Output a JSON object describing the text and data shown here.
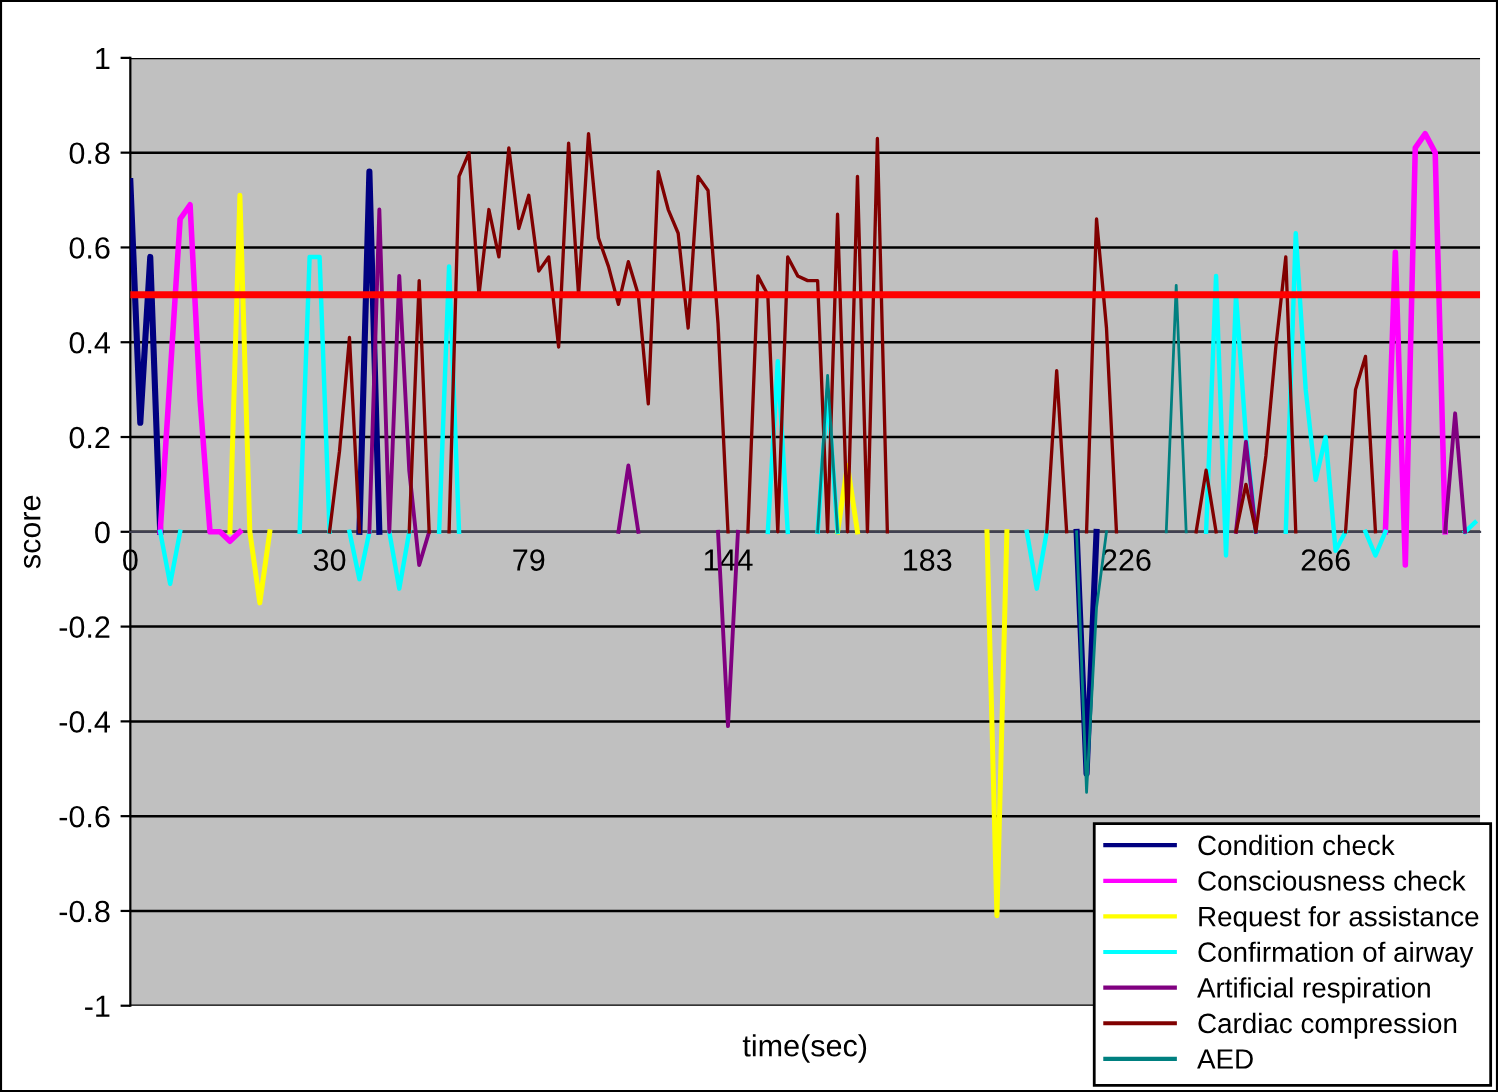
{
  "chart_data": {
    "type": "line",
    "xlabel": "time(sec)",
    "ylabel": "score",
    "categories": [
      "0",
      null,
      null,
      null,
      null,
      null,
      null,
      null,
      null,
      null,
      null,
      null,
      null,
      null,
      null,
      null,
      null,
      null,
      null,
      null,
      "30",
      null,
      null,
      null,
      null,
      null,
      null,
      null,
      null,
      null,
      null,
      null,
      null,
      null,
      null,
      null,
      null,
      null,
      null,
      null,
      "79",
      null,
      null,
      null,
      null,
      null,
      null,
      null,
      null,
      null,
      null,
      null,
      null,
      null,
      null,
      null,
      null,
      null,
      null,
      null,
      "144",
      null,
      null,
      null,
      null,
      null,
      null,
      null,
      null,
      null,
      null,
      null,
      null,
      null,
      null,
      null,
      null,
      null,
      null,
      null,
      "183",
      null,
      null,
      null,
      null,
      null,
      null,
      null,
      null,
      null,
      null,
      null,
      null,
      null,
      null,
      null,
      null,
      null,
      null,
      null,
      "226",
      null,
      null,
      null,
      null,
      null,
      null,
      null,
      null,
      null,
      null,
      null,
      null,
      null,
      null,
      null,
      null,
      null,
      null,
      null,
      "266",
      null,
      null,
      null,
      null,
      null,
      null,
      null,
      null,
      null,
      null,
      null,
      null,
      null,
      null,
      null
    ],
    "series": [
      {
        "name": "Condition check",
        "color": "#000080",
        "values": [
          0.74,
          0.23,
          0.58,
          0,
          null,
          null,
          null,
          null,
          null,
          null,
          null,
          null,
          null,
          null,
          null,
          null,
          null,
          null,
          null,
          null,
          null,
          null,
          null,
          0,
          0.76,
          0,
          null,
          null,
          null,
          null,
          null,
          null,
          null,
          null,
          null,
          null,
          null,
          null,
          null,
          null,
          null,
          null,
          null,
          null,
          null,
          null,
          null,
          null,
          null,
          null,
          null,
          null,
          null,
          null,
          null,
          null,
          null,
          null,
          null,
          null,
          null,
          null,
          null,
          null,
          null,
          null,
          null,
          null,
          null,
          null,
          null,
          null,
          null,
          null,
          null,
          null,
          null,
          null,
          null,
          null,
          null,
          null,
          null,
          null,
          null,
          null,
          null,
          null,
          null,
          null,
          null,
          null,
          null,
          null,
          null,
          0,
          -0.51,
          0,
          null,
          null,
          null,
          null,
          null,
          null,
          null,
          null,
          null,
          null,
          null,
          null,
          null,
          null,
          null,
          null,
          null,
          null,
          null,
          null,
          null,
          null,
          null,
          null,
          null,
          null,
          null,
          null,
          null,
          null,
          null,
          null,
          null,
          null,
          null,
          null,
          null,
          null
        ]
      },
      {
        "name": "Consciousness check",
        "color": "#ff00ff",
        "values": [
          null,
          null,
          null,
          0,
          0.33,
          0.66,
          0.69,
          0.28,
          0,
          0,
          -0.02,
          0,
          null,
          null,
          null,
          null,
          null,
          null,
          null,
          null,
          null,
          null,
          null,
          null,
          null,
          null,
          null,
          null,
          null,
          null,
          null,
          null,
          null,
          null,
          null,
          null,
          null,
          null,
          null,
          null,
          null,
          null,
          null,
          null,
          null,
          null,
          null,
          null,
          null,
          null,
          null,
          null,
          null,
          null,
          null,
          null,
          null,
          null,
          null,
          null,
          null,
          null,
          null,
          null,
          null,
          null,
          null,
          null,
          null,
          null,
          null,
          null,
          null,
          null,
          null,
          null,
          null,
          null,
          null,
          null,
          null,
          null,
          null,
          null,
          null,
          null,
          null,
          null,
          null,
          null,
          null,
          null,
          null,
          null,
          null,
          null,
          null,
          null,
          null,
          null,
          null,
          null,
          null,
          null,
          null,
          null,
          null,
          null,
          null,
          null,
          null,
          null,
          null,
          null,
          null,
          null,
          null,
          null,
          null,
          null,
          null,
          null,
          null,
          null,
          null,
          null,
          0,
          0.59,
          -0.07,
          0.81,
          0.84,
          0.8,
          0,
          null,
          null,
          null
        ]
      },
      {
        "name": "Request for assistance",
        "color": "#ffff00",
        "values": [
          null,
          null,
          null,
          null,
          null,
          null,
          null,
          null,
          null,
          null,
          0,
          0.71,
          0,
          -0.15,
          0,
          null,
          null,
          null,
          null,
          null,
          null,
          null,
          null,
          null,
          null,
          null,
          null,
          null,
          null,
          null,
          null,
          null,
          null,
          null,
          null,
          null,
          null,
          null,
          null,
          null,
          null,
          null,
          null,
          null,
          null,
          null,
          null,
          null,
          null,
          null,
          null,
          null,
          null,
          null,
          null,
          null,
          null,
          null,
          null,
          null,
          null,
          null,
          null,
          null,
          null,
          null,
          null,
          null,
          null,
          null,
          null,
          0,
          0.14,
          0,
          null,
          null,
          null,
          null,
          null,
          null,
          null,
          null,
          null,
          null,
          null,
          null,
          0,
          -0.81,
          0,
          null,
          null,
          null,
          null,
          null,
          null,
          null,
          null,
          null,
          null,
          null,
          null,
          null,
          null,
          null,
          null,
          null,
          null,
          null,
          null,
          null,
          null,
          null,
          null,
          null,
          null,
          null,
          null,
          null,
          null,
          null,
          null,
          null,
          null,
          null,
          null,
          null,
          null,
          null,
          null,
          null,
          null,
          null,
          null,
          null,
          null,
          null
        ]
      },
      {
        "name": "Confirmation of airway",
        "color": "#00ffff",
        "values": [
          null,
          null,
          null,
          0,
          -0.11,
          0,
          null,
          null,
          null,
          null,
          null,
          null,
          null,
          null,
          null,
          null,
          null,
          0,
          0.58,
          0.58,
          0,
          null,
          0,
          -0.1,
          0,
          null,
          0,
          -0.12,
          0,
          null,
          null,
          0,
          0.56,
          0,
          null,
          null,
          null,
          null,
          null,
          null,
          null,
          null,
          null,
          null,
          null,
          null,
          null,
          null,
          null,
          null,
          null,
          null,
          null,
          null,
          null,
          null,
          null,
          null,
          null,
          null,
          null,
          null,
          null,
          null,
          0,
          0.36,
          0,
          null,
          null,
          0,
          0.3,
          0,
          null,
          null,
          null,
          null,
          null,
          null,
          null,
          null,
          null,
          null,
          null,
          null,
          null,
          null,
          null,
          null,
          null,
          null,
          0,
          -0.12,
          0,
          null,
          null,
          null,
          null,
          null,
          null,
          null,
          null,
          null,
          null,
          null,
          null,
          null,
          null,
          null,
          0,
          0.54,
          -0.05,
          0.5,
          0.2,
          0,
          null,
          null,
          0,
          0.63,
          0.3,
          0.11,
          0.2,
          -0.04,
          0,
          null,
          0,
          -0.05,
          0,
          null,
          null,
          null,
          null,
          null,
          null,
          null,
          0,
          0.02
        ]
      },
      {
        "name": "Artificial respiration",
        "color": "#800080",
        "values": [
          null,
          null,
          null,
          null,
          null,
          null,
          null,
          null,
          null,
          null,
          null,
          null,
          null,
          null,
          null,
          null,
          null,
          null,
          null,
          null,
          null,
          null,
          null,
          null,
          0,
          0.68,
          0,
          0.54,
          0.13,
          -0.07,
          0,
          null,
          null,
          null,
          null,
          null,
          null,
          null,
          null,
          null,
          null,
          null,
          null,
          null,
          null,
          null,
          null,
          null,
          null,
          0,
          0.14,
          0,
          null,
          null,
          null,
          null,
          null,
          null,
          null,
          0,
          -0.41,
          0,
          null,
          null,
          null,
          null,
          null,
          null,
          null,
          null,
          null,
          null,
          null,
          null,
          null,
          null,
          null,
          null,
          null,
          null,
          null,
          null,
          null,
          null,
          null,
          null,
          null,
          null,
          null,
          null,
          null,
          null,
          null,
          null,
          null,
          null,
          null,
          null,
          null,
          null,
          null,
          null,
          null,
          null,
          null,
          null,
          null,
          null,
          null,
          null,
          null,
          0,
          0.19,
          0,
          null,
          null,
          null,
          null,
          null,
          null,
          null,
          null,
          null,
          null,
          null,
          null,
          null,
          null,
          null,
          null,
          null,
          null,
          0,
          0.25,
          0,
          null
        ]
      },
      {
        "name": "Cardiac compression",
        "color": "#800000",
        "values": [
          null,
          null,
          null,
          null,
          null,
          null,
          null,
          null,
          null,
          null,
          null,
          null,
          null,
          null,
          null,
          null,
          null,
          null,
          null,
          null,
          0,
          0.17,
          0.41,
          0,
          null,
          null,
          null,
          null,
          0,
          0.53,
          0,
          null,
          0,
          0.75,
          0.8,
          0.5,
          0.68,
          0.58,
          0.81,
          0.64,
          0.71,
          0.55,
          0.58,
          0.39,
          0.82,
          0.5,
          0.84,
          0.62,
          0.56,
          0.48,
          0.57,
          0.5,
          0.27,
          0.76,
          0.68,
          0.63,
          0.43,
          0.75,
          0.72,
          0.44,
          0,
          null,
          0,
          0.54,
          0.5,
          0,
          0.58,
          0.54,
          0.53,
          0.53,
          0,
          0.67,
          0,
          0.75,
          0,
          0.83,
          0,
          null,
          null,
          null,
          null,
          null,
          null,
          null,
          null,
          null,
          null,
          null,
          null,
          null,
          null,
          null,
          0,
          0.34,
          0,
          null,
          0,
          0.66,
          0.43,
          0,
          null,
          null,
          null,
          null,
          null,
          null,
          null,
          0,
          0.13,
          0,
          null,
          0,
          0.1,
          0,
          0.16,
          0.39,
          0.58,
          0,
          null,
          null,
          null,
          null,
          0,
          0.3,
          0.37,
          0,
          null,
          null,
          null,
          null,
          null,
          null,
          null,
          null,
          null,
          null
        ]
      },
      {
        "name": "AED",
        "color": "#008080",
        "values": [
          null,
          null,
          null,
          null,
          null,
          null,
          null,
          null,
          null,
          null,
          null,
          null,
          null,
          null,
          null,
          null,
          null,
          null,
          null,
          null,
          null,
          null,
          null,
          null,
          null,
          null,
          null,
          null,
          null,
          null,
          null,
          null,
          null,
          null,
          null,
          null,
          null,
          null,
          null,
          null,
          null,
          null,
          null,
          null,
          null,
          null,
          null,
          null,
          null,
          null,
          null,
          null,
          null,
          null,
          null,
          null,
          null,
          null,
          null,
          null,
          null,
          null,
          null,
          null,
          null,
          null,
          null,
          null,
          null,
          0,
          0.33,
          0,
          null,
          null,
          null,
          null,
          null,
          null,
          null,
          null,
          null,
          null,
          null,
          null,
          null,
          null,
          null,
          null,
          null,
          null,
          null,
          null,
          null,
          null,
          null,
          0,
          -0.55,
          -0.16,
          0,
          null,
          null,
          null,
          null,
          null,
          0,
          0.52,
          0,
          null,
          null,
          null,
          null,
          null,
          null,
          null,
          null,
          null,
          null,
          null,
          null,
          null,
          null,
          null,
          null,
          null,
          null,
          null,
          null,
          null,
          null,
          null,
          null,
          null,
          null,
          null,
          null,
          null
        ]
      }
    ],
    "ylim": [
      -1,
      1
    ],
    "yticks": [
      -1,
      -0.8,
      -0.6,
      -0.4,
      -0.2,
      0,
      0.2,
      0.4,
      0.6,
      0.8,
      1
    ],
    "ref_lines": [
      {
        "axis": "y",
        "value": 0.5,
        "color": "#ff0000"
      }
    ],
    "grid": "y",
    "legend": "bottom right",
    "marker": "none",
    "line_style": "solid"
  }
}
